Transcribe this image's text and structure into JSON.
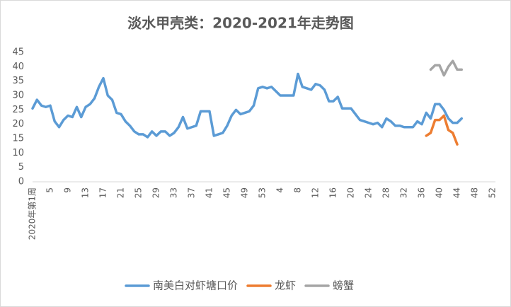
{
  "chart_data": {
    "type": "line",
    "title": "淡水甲壳类：2020-2021年走势图",
    "categories": [
      "2020年第1周",
      null,
      null,
      null,
      "5",
      null,
      null,
      null,
      "9",
      null,
      null,
      null,
      "13",
      null,
      null,
      null,
      "17",
      null,
      null,
      null,
      "21",
      null,
      null,
      null,
      "25",
      null,
      null,
      null,
      "29",
      null,
      null,
      null,
      "33",
      null,
      null,
      null,
      "37",
      null,
      null,
      null,
      "41",
      null,
      null,
      null,
      "45",
      null,
      null,
      null,
      "49",
      null,
      null,
      null,
      "53",
      null,
      null,
      null,
      "4",
      null,
      null,
      null,
      "8",
      null,
      null,
      null,
      "12",
      null,
      null,
      null,
      "16",
      null,
      null,
      null,
      "20",
      null,
      null,
      null,
      "24",
      null,
      null,
      null,
      "28",
      null,
      null,
      null,
      "32",
      null,
      null,
      null,
      "36",
      null,
      null,
      null,
      "40",
      null,
      null,
      null,
      "44",
      null,
      null,
      null,
      "48",
      null,
      null,
      null,
      "52"
    ],
    "series": [
      {
        "name": "南美白对虾塘口价",
        "color": "#5b9bd5",
        "values": [
          25.5,
          28.5,
          26.5,
          26,
          26.5,
          21,
          19,
          21.5,
          23,
          22.5,
          26,
          22.5,
          26,
          27,
          29,
          33,
          36,
          30,
          28.5,
          24,
          23.5,
          21,
          19.5,
          17.5,
          16.5,
          16.5,
          15.5,
          17.5,
          16,
          17.5,
          17.5,
          16,
          17,
          19,
          22.5,
          18.5,
          19,
          19.5,
          24.5,
          24.5,
          24.5,
          16,
          16.5,
          17,
          19.5,
          23,
          25,
          23.5,
          24,
          24.5,
          26.5,
          32.5,
          33,
          32.5,
          33,
          31.5,
          30,
          30,
          30,
          30,
          37.5,
          33,
          32.5,
          32,
          34,
          33.5,
          32,
          28,
          28,
          29.5,
          25.5,
          25.5,
          25.5,
          23.5,
          21.5,
          21,
          20.5,
          20,
          20.5,
          19,
          22,
          21,
          19.5,
          19.5,
          19,
          19,
          19,
          21,
          20,
          24,
          22,
          27,
          27,
          25,
          22,
          20.5,
          20.5,
          22,
          null,
          null,
          null,
          null,
          null,
          null,
          null
        ]
      },
      {
        "name": "龙虾",
        "color": "#ed7d31",
        "values": [
          null,
          null,
          null,
          null,
          null,
          null,
          null,
          null,
          null,
          null,
          null,
          null,
          null,
          null,
          null,
          null,
          null,
          null,
          null,
          null,
          null,
          null,
          null,
          null,
          null,
          null,
          null,
          null,
          null,
          null,
          null,
          null,
          null,
          null,
          null,
          null,
          null,
          null,
          null,
          null,
          null,
          null,
          null,
          null,
          null,
          null,
          null,
          null,
          null,
          null,
          null,
          null,
          null,
          null,
          null,
          null,
          null,
          null,
          null,
          null,
          null,
          null,
          null,
          null,
          null,
          null,
          null,
          null,
          null,
          null,
          null,
          null,
          null,
          null,
          null,
          null,
          null,
          null,
          null,
          null,
          null,
          null,
          null,
          null,
          null,
          null,
          null,
          null,
          null,
          16,
          17,
          21.5,
          21.5,
          23,
          18,
          17,
          13,
          null,
          null,
          null,
          null,
          null,
          null,
          null,
          null
        ]
      },
      {
        "name": "螃蟹",
        "color": "#a5a5a5",
        "values": [
          null,
          null,
          null,
          null,
          null,
          null,
          null,
          null,
          null,
          null,
          null,
          null,
          null,
          null,
          null,
          null,
          null,
          null,
          null,
          null,
          null,
          null,
          null,
          null,
          null,
          null,
          null,
          null,
          null,
          null,
          null,
          null,
          null,
          null,
          null,
          null,
          null,
          null,
          null,
          null,
          null,
          null,
          null,
          null,
          null,
          null,
          null,
          null,
          null,
          null,
          null,
          null,
          null,
          null,
          null,
          null,
          null,
          null,
          null,
          null,
          null,
          null,
          null,
          null,
          null,
          null,
          null,
          null,
          null,
          null,
          null,
          null,
          null,
          null,
          null,
          null,
          null,
          null,
          null,
          null,
          null,
          null,
          null,
          null,
          null,
          null,
          null,
          null,
          null,
          null,
          39,
          40.5,
          40.5,
          37,
          40,
          42,
          39,
          39,
          null,
          null,
          null,
          null,
          null,
          null,
          null
        ]
      }
    ],
    "ylim": [
      0,
      45
    ],
    "yticks": [
      0,
      5,
      10,
      15,
      20,
      25,
      30,
      35,
      40,
      45
    ],
    "grid": false,
    "legend": "bottom"
  }
}
